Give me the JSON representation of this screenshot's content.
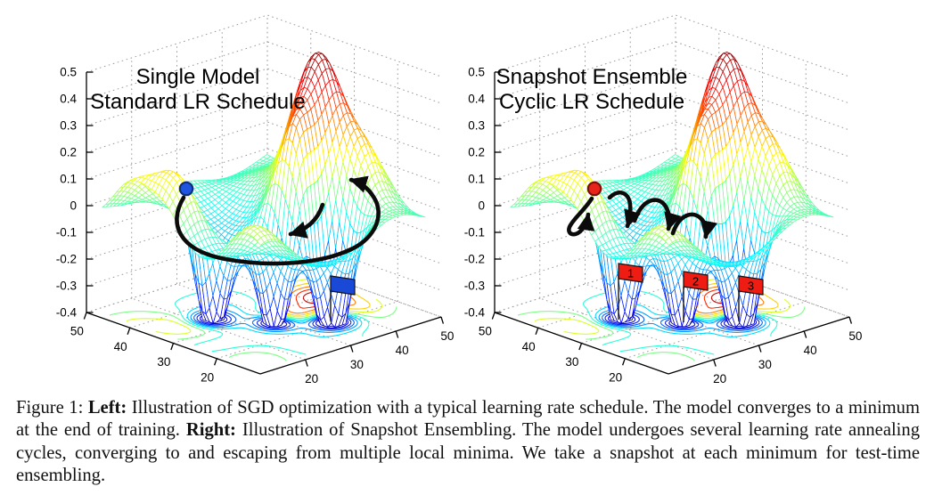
{
  "figure": {
    "caption_segments": [
      {
        "text": "Figure 1: ",
        "bold": false
      },
      {
        "text": "Left:",
        "bold": true
      },
      {
        "text": " Illustration of SGD optimization with a typical learning rate schedule. The model converges to a minimum at the end of training. ",
        "bold": false
      },
      {
        "text": "Right:",
        "bold": true
      },
      {
        "text": " Illustration of Snapshot Ensembling. The model undergoes several learning rate annealing cycles, converging to and escaping from multiple local minima. We take a snapshot at each minimum for test-time ensembling.",
        "bold": false
      }
    ]
  },
  "panels": [
    {
      "title_lines": [
        "Single Model",
        "Standard LR Schedule"
      ],
      "z_ticks": [
        "0.5",
        "0.4",
        "0.3",
        "0.2",
        "0.1",
        "0",
        "-0.1",
        "-0.2",
        "-0.3",
        "-0.4"
      ],
      "x_ticks": [
        "20",
        "30",
        "40",
        "50"
      ],
      "y_ticks": [
        "20",
        "30",
        "40",
        "50"
      ],
      "start_marker": {
        "color": "#1f53e0",
        "edge": "#0d2f78"
      },
      "trajectory_color": "#0b0b0b",
      "flags": [
        {
          "label": "",
          "fill": "#1a49d8"
        }
      ]
    },
    {
      "title_lines": [
        "Snapshot Ensemble",
        "Cyclic LR Schedule"
      ],
      "z_ticks": [
        "0.5",
        "0.4",
        "0.3",
        "0.2",
        "0.1",
        "0",
        "-0.1",
        "-0.2",
        "-0.3",
        "-0.4"
      ],
      "x_ticks": [
        "20",
        "30",
        "40",
        "50"
      ],
      "y_ticks": [
        "20",
        "30",
        "40",
        "50"
      ],
      "start_marker": {
        "color": "#e8231a",
        "edge": "#7a100a"
      },
      "trajectory_color": "#0b0b0b",
      "flags": [
        {
          "label": "1",
          "fill": "#ee1c12"
        },
        {
          "label": "2",
          "fill": "#ee1c12"
        },
        {
          "label": "3",
          "fill": "#ee1c12"
        }
      ]
    }
  ],
  "surface_model": {
    "features": [
      {
        "cu": 0.8,
        "cv": 0.5,
        "A": 0.58,
        "s": 0.105
      },
      {
        "cu": 0.6,
        "cv": 0.42,
        "A": 0.38,
        "s": 0.085
      },
      {
        "cu": 0.17,
        "cv": 0.6,
        "A": 0.24,
        "s": 0.1
      },
      {
        "cu": 0.85,
        "cv": 0.3,
        "A": 0.22,
        "s": 0.085
      },
      {
        "cu": 0.3,
        "cv": 0.6,
        "A": -0.5,
        "s": 0.068
      },
      {
        "cu": 0.47,
        "cv": 0.4,
        "A": -0.52,
        "s": 0.062
      },
      {
        "cu": 0.64,
        "cv": 0.26,
        "A": -0.55,
        "s": 0.068
      },
      {
        "cu": 0.5,
        "cv": 0.42,
        "A": -0.12,
        "s": 0.3
      },
      {
        "cu": 0.05,
        "cv": 0.8,
        "A": 0.1,
        "s": 0.09
      },
      {
        "cu": 0.1,
        "cv": 0.15,
        "A": 0.1,
        "s": 0.09
      },
      {
        "cu": 0.95,
        "cv": 0.65,
        "A": 0.1,
        "s": 0.09
      }
    ],
    "ripple": {
      "amp": 0.045,
      "fu": 9.5,
      "pu": 0.6,
      "fv": 9.5,
      "pv": 0.9
    },
    "contour_levels": [
      -0.36,
      -0.3,
      -0.24,
      -0.18,
      -0.12,
      -0.05,
      0.03,
      0.12,
      0.2,
      0.28,
      0.36,
      0.44
    ],
    "color_range": [
      -0.45,
      0.52
    ]
  },
  "chart_data": [
    {
      "type": "surface",
      "title": "Single Model Standard LR Schedule",
      "style": "3D wireframe mesh with contour projection on floor (MATLAB meshc), jet colormap",
      "x_range": [
        10,
        50
      ],
      "y_range": [
        10,
        50
      ],
      "z_range": [
        -0.4,
        0.5
      ],
      "x_ticks": [
        20,
        30,
        40,
        50
      ],
      "y_ticks": [
        20,
        30,
        40,
        50
      ],
      "z_ticks": [
        0.5,
        0.4,
        0.3,
        0.2,
        0.1,
        0,
        -0.1,
        -0.2,
        -0.3,
        -0.4
      ],
      "colormap": "jet",
      "grid": "dotted",
      "annotations": [
        "blue circular start marker on a left-side hill of the loss surface",
        "single long black SGD trajectory arrow sweeping through the valley and circling toward a minimum",
        "short black arrow descending into the central (global) minimum",
        "one blue flag on the floor contour marking the final converged minimum"
      ]
    },
    {
      "type": "surface",
      "title": "Snapshot Ensemble Cyclic LR Schedule",
      "style": "3D wireframe mesh with contour projection on floor (MATLAB meshc), jet colormap",
      "x_range": [
        10,
        50
      ],
      "y_range": [
        10,
        50
      ],
      "z_range": [
        -0.4,
        0.5
      ],
      "x_ticks": [
        20,
        30,
        40,
        50
      ],
      "y_ticks": [
        20,
        30,
        40,
        50
      ],
      "z_ticks": [
        0.5,
        0.4,
        0.3,
        0.2,
        0.1,
        0,
        -0.1,
        -0.2,
        -0.3,
        -0.4
      ],
      "colormap": "jet",
      "grid": "dotted",
      "annotations": [
        "red circular start marker on a left-side hill of the loss surface",
        "hook-shaped black arrow descending into first minimum then curling up (learning-rate restart)",
        "three arched black arrows hopping between successive local minima",
        "red flags labeled 1, 2, 3 on the floor contour marking snapshot minima"
      ]
    }
  ]
}
